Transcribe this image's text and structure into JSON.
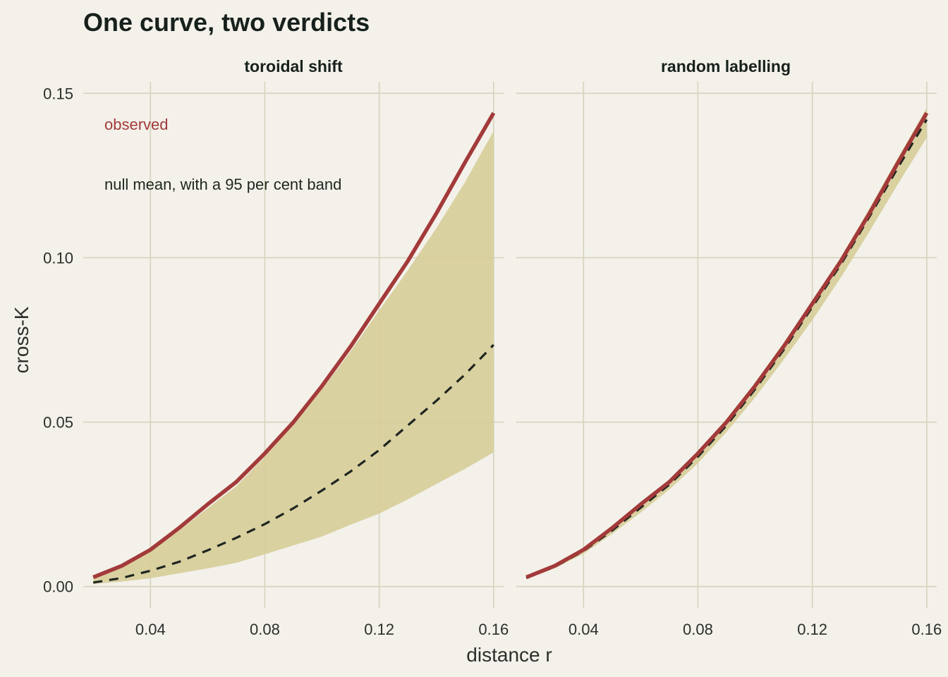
{
  "chart_data": {
    "type": "line",
    "title": "One curve, two verdicts",
    "xlabel": "distance r",
    "ylabel": "cross-K",
    "xlim": [
      0.0165,
      0.1635
    ],
    "ylim": [
      -0.0065,
      0.1535
    ],
    "x_ticks": [
      0.04,
      0.08,
      0.12,
      0.16
    ],
    "x_tick_labels": [
      "0.04",
      "0.08",
      "0.12",
      "0.16"
    ],
    "y_ticks": [
      0,
      0.05,
      0.1,
      0.15
    ],
    "y_tick_labels": [
      "0.00",
      "0.05",
      "0.10",
      "0.15"
    ],
    "grid": true,
    "colors": {
      "background": "#f3f1ea",
      "grid": "#d6d4bd",
      "band": "#d6cc96",
      "observed": "#a33a3a",
      "null_mean": "#1f2621",
      "text": "#17201c"
    },
    "annotations": {
      "observed_label": "observed",
      "null_label": "null mean, with a 95 per cent band"
    },
    "x": [
      0.02,
      0.03,
      0.04,
      0.05,
      0.06,
      0.07,
      0.08,
      0.09,
      0.1,
      0.11,
      0.12,
      0.13,
      0.14,
      0.15,
      0.16
    ],
    "panels": [
      {
        "label": "toroidal shift",
        "series": [
          {
            "name": "observed",
            "values": [
              0.0028,
              0.0063,
              0.0112,
              0.0178,
              0.025,
              0.0318,
              0.0405,
              0.05,
              0.061,
              0.073,
              0.086,
              0.099,
              0.1135,
              0.129,
              0.144
            ]
          },
          {
            "name": "null mean",
            "values": [
              0.0012,
              0.0026,
              0.0048,
              0.0075,
              0.011,
              0.0148,
              0.019,
              0.0238,
              0.0292,
              0.035,
              0.0415,
              0.049,
              0.0565,
              0.0645,
              0.0735
            ]
          }
        ],
        "band_low": [
          0.0008,
          0.0015,
          0.0025,
          0.004,
          0.0055,
          0.0072,
          0.0098,
          0.0125,
          0.0152,
          0.0188,
          0.0222,
          0.0265,
          0.0312,
          0.0358,
          0.0408
        ],
        "band_high": [
          0.0025,
          0.006,
          0.0108,
          0.017,
          0.0238,
          0.0305,
          0.0395,
          0.0492,
          0.06,
          0.0715,
          0.084,
          0.0962,
          0.109,
          0.123,
          0.1385
        ]
      },
      {
        "label": "random labelling",
        "series": [
          {
            "name": "observed",
            "values": [
              0.0028,
              0.0063,
              0.0112,
              0.0178,
              0.025,
              0.0318,
              0.0405,
              0.05,
              0.061,
              0.073,
              0.086,
              0.099,
              0.1135,
              0.129,
              0.144
            ]
          },
          {
            "name": "null mean",
            "values": [
              0.0026,
              0.006,
              0.0108,
              0.017,
              0.024,
              0.031,
              0.0395,
              0.049,
              0.06,
              0.072,
              0.085,
              0.098,
              0.1125,
              0.1275,
              0.142
            ]
          }
        ],
        "band_low": [
          0.0024,
          0.0056,
          0.01,
          0.016,
          0.0225,
          0.0295,
          0.0375,
          0.047,
          0.0575,
          0.069,
          0.081,
          0.094,
          0.108,
          0.1225,
          0.1365
        ],
        "band_high": [
          0.003,
          0.0065,
          0.0115,
          0.018,
          0.0255,
          0.0325,
          0.0412,
          0.051,
          0.062,
          0.0742,
          0.087,
          0.1002,
          0.115,
          0.1305,
          0.1455
        ]
      }
    ]
  }
}
